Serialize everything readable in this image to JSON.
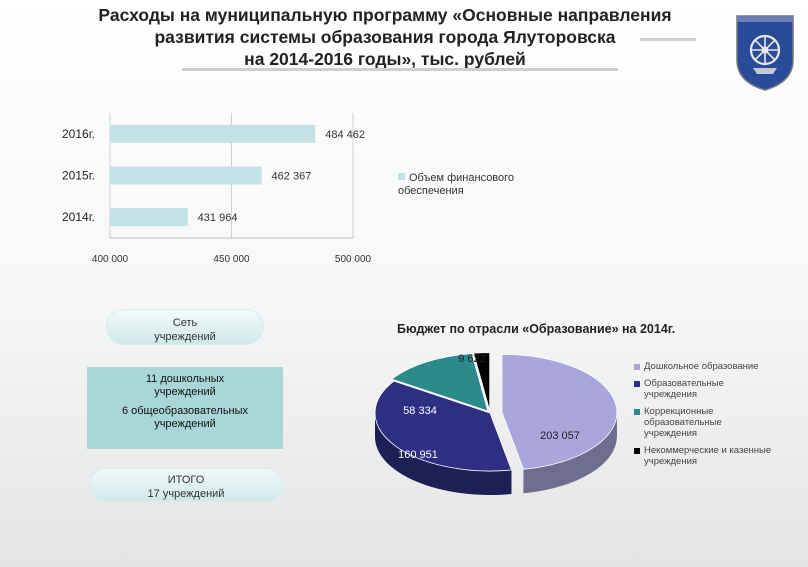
{
  "title": {
    "line1": "Расходы на муниципальную программу «Основные направления",
    "line2": "развития системы образования города Ялуторовска",
    "line3": "на 2014-2016 годы», тыс. рублей"
  },
  "network": {
    "header_line1": "Сеть",
    "header_line2": "учреждений",
    "preschool_line1": "11 дошкольных",
    "preschool_line2": "учреждений",
    "general_line1": "6 общеобразовательных",
    "general_line2": "учреждений",
    "total_line1": "ИТОГО",
    "total_line2": "17 учреждений"
  },
  "colors": {
    "bar": "#c2e2e6",
    "preschool": "#a9a6dc",
    "educational": "#2e2f82",
    "correctional": "#2d8a8c",
    "noncommercial": "#000000"
  },
  "chart_data": [
    {
      "type": "bar",
      "orientation": "horizontal",
      "categories": [
        "2016г.",
        "2015г.",
        "2014г."
      ],
      "values": [
        484462,
        462367,
        431964
      ],
      "value_labels": [
        "484 462",
        "462 367",
        "431 964"
      ],
      "series": [
        {
          "name": "Объем финансового обеспечения",
          "values": [
            484462,
            462367,
            431964
          ]
        }
      ],
      "legend": {
        "line1": "Объем финансового",
        "line2": "обеспечения"
      },
      "xlim": [
        400000,
        500000
      ],
      "xticks": [
        400000,
        450000,
        500000
      ],
      "xtick_labels": [
        "400 000",
        "450 000",
        "500 000"
      ],
      "grid": true,
      "legend_position": "right"
    },
    {
      "type": "pie",
      "title": "Бюджет по отрасли «Образование» на 2014г.",
      "slices": [
        {
          "name": "Дошкольное образование",
          "legend_lines": [
            "Дошкольное образование"
          ],
          "value": 203057,
          "label": "203 057",
          "color": "#a9a6dc"
        },
        {
          "name": "Образовательные учреждения",
          "legend_lines": [
            "Образовательные",
            "учреждения"
          ],
          "value": 160951,
          "label": "160 951",
          "color": "#2e2f82"
        },
        {
          "name": "Коррекционные образовательные учреждения",
          "legend_lines": [
            "Коррекционные",
            "образовательные",
            "учреждения"
          ],
          "value": 58334,
          "label": "58 334",
          "color": "#2d8a8c"
        },
        {
          "name": "Некоммерческие и казенные учреждения",
          "legend_lines": [
            "Некоммерческие и казенные",
            "учреждения"
          ],
          "value": 9622,
          "label": "9 622",
          "color": "#000000"
        }
      ],
      "style": "3d-exploded",
      "legend_position": "right"
    }
  ]
}
